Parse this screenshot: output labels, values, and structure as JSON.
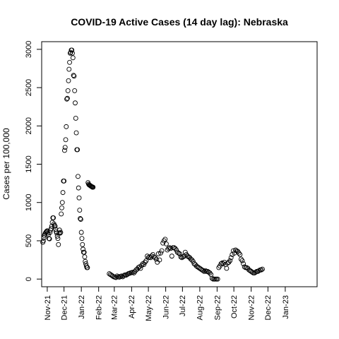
{
  "chart_data": {
    "type": "scatter",
    "title": "COVID-19 Active Cases (14 day lag): Nebraska",
    "xlabel": "",
    "ylabel": "Cases per 100,000",
    "ylim": [
      -100,
      3100
    ],
    "xlim": [
      "2021-10-22",
      "2023-02-27"
    ],
    "yticks": [
      0,
      500,
      1000,
      1500,
      2000,
      2500,
      3000
    ],
    "xticks": [
      {
        "date": "2021-11-01",
        "label": "Nov-21"
      },
      {
        "date": "2021-12-01",
        "label": "Dec-21"
      },
      {
        "date": "2022-01-01",
        "label": "Jan-22"
      },
      {
        "date": "2022-02-01",
        "label": "Feb-22"
      },
      {
        "date": "2022-03-01",
        "label": "Mar-22"
      },
      {
        "date": "2022-04-01",
        "label": "Apr-22"
      },
      {
        "date": "2022-05-01",
        "label": "May-22"
      },
      {
        "date": "2022-06-01",
        "label": "Jun-22"
      },
      {
        "date": "2022-07-01",
        "label": "Jul-22"
      },
      {
        "date": "2022-08-01",
        "label": "Aug-22"
      },
      {
        "date": "2022-09-01",
        "label": "Sep-22"
      },
      {
        "date": "2022-10-01",
        "label": "Oct-22"
      },
      {
        "date": "2022-11-01",
        "label": "Nov-22"
      },
      {
        "date": "2022-12-01",
        "label": "Dec-22"
      },
      {
        "date": "2023-01-01",
        "label": "Jan-23"
      }
    ],
    "marker": "open-circle",
    "grid": false,
    "series": [
      {
        "points": [
          [
            "2021-10-24",
            480
          ],
          [
            "2021-10-25",
            500
          ],
          [
            "2021-10-26",
            540
          ],
          [
            "2021-10-27",
            570
          ],
          [
            "2021-10-28",
            590
          ],
          [
            "2021-10-29",
            605
          ],
          [
            "2021-10-30",
            615
          ],
          [
            "2021-10-31",
            625
          ],
          [
            "2021-11-01",
            630
          ],
          [
            "2021-11-02",
            600
          ],
          [
            "2021-11-03",
            580
          ],
          [
            "2021-11-04",
            530
          ],
          [
            "2021-11-05",
            525
          ],
          [
            "2021-11-06",
            610
          ],
          [
            "2021-11-07",
            640
          ],
          [
            "2021-11-08",
            660
          ],
          [
            "2021-11-09",
            690
          ],
          [
            "2021-11-10",
            740
          ],
          [
            "2021-11-11",
            800
          ],
          [
            "2021-11-12",
            800
          ],
          [
            "2021-11-13",
            720
          ],
          [
            "2021-11-14",
            700
          ],
          [
            "2021-11-15",
            690
          ],
          [
            "2021-11-16",
            650
          ],
          [
            "2021-11-17",
            620
          ],
          [
            "2021-11-18",
            600
          ],
          [
            "2021-11-19",
            560
          ],
          [
            "2021-11-20",
            530
          ],
          [
            "2021-11-21",
            450
          ],
          [
            "2021-11-22",
            600
          ],
          [
            "2021-11-23",
            640
          ],
          [
            "2021-11-24",
            600
          ],
          [
            "2021-11-25",
            610
          ],
          [
            "2021-11-26",
            850
          ],
          [
            "2021-11-27",
            930
          ],
          [
            "2021-11-28",
            1000
          ],
          [
            "2021-11-29",
            1130
          ],
          [
            "2021-11-30",
            1280
          ],
          [
            "2021-12-01",
            1280
          ],
          [
            "2021-12-02",
            1680
          ],
          [
            "2021-12-03",
            1720
          ],
          [
            "2021-12-04",
            1820
          ],
          [
            "2021-12-05",
            1990
          ],
          [
            "2021-12-06",
            2350
          ],
          [
            "2021-12-07",
            2360
          ],
          [
            "2021-12-08",
            2460
          ],
          [
            "2021-12-09",
            2590
          ],
          [
            "2021-12-10",
            2740
          ],
          [
            "2021-12-11",
            2830
          ],
          [
            "2021-12-12",
            2950
          ],
          [
            "2021-12-13",
            2960
          ],
          [
            "2021-12-14",
            2990
          ],
          [
            "2021-12-15",
            2990
          ],
          [
            "2021-12-16",
            2950
          ],
          [
            "2021-12-17",
            2890
          ],
          [
            "2021-12-18",
            2660
          ],
          [
            "2021-12-19",
            2650
          ],
          [
            "2021-12-20",
            2460
          ],
          [
            "2021-12-21",
            2300
          ],
          [
            "2021-12-22",
            2100
          ],
          [
            "2021-12-23",
            1910
          ],
          [
            "2021-12-24",
            1690
          ],
          [
            "2021-12-25",
            1690
          ],
          [
            "2021-12-26",
            1340
          ],
          [
            "2021-12-27",
            1190
          ],
          [
            "2021-12-28",
            1060
          ],
          [
            "2021-12-29",
            900
          ],
          [
            "2021-12-30",
            790
          ],
          [
            "2021-12-31",
            780
          ],
          [
            "2022-01-01",
            610
          ],
          [
            "2022-01-02",
            530
          ],
          [
            "2022-01-03",
            450
          ],
          [
            "2022-01-04",
            390
          ],
          [
            "2022-01-05",
            350
          ],
          [
            "2022-01-06",
            350
          ],
          [
            "2022-01-07",
            290
          ],
          [
            "2022-01-08",
            230
          ],
          [
            "2022-01-09",
            200
          ],
          [
            "2022-01-10",
            170
          ],
          [
            "2022-01-11",
            150
          ],
          [
            "2022-01-12",
            150
          ],
          [
            "2022-01-13",
            1260
          ],
          [
            "2022-01-14",
            1240
          ],
          [
            "2022-01-15",
            1230
          ],
          [
            "2022-01-16",
            1225
          ],
          [
            "2022-01-17",
            1220
          ],
          [
            "2022-01-18",
            1215
          ],
          [
            "2022-01-19",
            1210
          ],
          [
            "2022-01-20",
            1205
          ],
          [
            "2022-01-21",
            1200
          ],
          [
            "2022-01-22",
            1200
          ],
          [
            "2022-02-20",
            70
          ],
          [
            "2022-02-22",
            60
          ],
          [
            "2022-02-24",
            50
          ],
          [
            "2022-02-26",
            40
          ],
          [
            "2022-02-28",
            30
          ],
          [
            "2022-03-02",
            25
          ],
          [
            "2022-03-04",
            20
          ],
          [
            "2022-03-06",
            40
          ],
          [
            "2022-03-08",
            30
          ],
          [
            "2022-03-10",
            25
          ],
          [
            "2022-03-12",
            35
          ],
          [
            "2022-03-14",
            40
          ],
          [
            "2022-03-16",
            30
          ],
          [
            "2022-03-18",
            45
          ],
          [
            "2022-03-20",
            55
          ],
          [
            "2022-03-22",
            50
          ],
          [
            "2022-03-24",
            60
          ],
          [
            "2022-03-26",
            70
          ],
          [
            "2022-03-28",
            75
          ],
          [
            "2022-03-30",
            80
          ],
          [
            "2022-04-01",
            85
          ],
          [
            "2022-04-03",
            90
          ],
          [
            "2022-04-05",
            80
          ],
          [
            "2022-04-07",
            100
          ],
          [
            "2022-04-09",
            120
          ],
          [
            "2022-04-11",
            130
          ],
          [
            "2022-04-13",
            150
          ],
          [
            "2022-04-15",
            160
          ],
          [
            "2022-04-17",
            140
          ],
          [
            "2022-04-19",
            180
          ],
          [
            "2022-04-21",
            200
          ],
          [
            "2022-04-23",
            190
          ],
          [
            "2022-04-25",
            220
          ],
          [
            "2022-04-27",
            240
          ],
          [
            "2022-04-29",
            300
          ],
          [
            "2022-05-01",
            280
          ],
          [
            "2022-05-03",
            290
          ],
          [
            "2022-05-05",
            280
          ],
          [
            "2022-05-07",
            300
          ],
          [
            "2022-05-09",
            320
          ],
          [
            "2022-05-11",
            290
          ],
          [
            "2022-05-13",
            280
          ],
          [
            "2022-05-15",
            260
          ],
          [
            "2022-05-17",
            220
          ],
          [
            "2022-05-19",
            330
          ],
          [
            "2022-05-21",
            250
          ],
          [
            "2022-05-23",
            340
          ],
          [
            "2022-05-25",
            370
          ],
          [
            "2022-05-27",
            470
          ],
          [
            "2022-05-29",
            500
          ],
          [
            "2022-05-31",
            520
          ],
          [
            "2022-06-02",
            460
          ],
          [
            "2022-06-04",
            380
          ],
          [
            "2022-06-06",
            400
          ],
          [
            "2022-06-08",
            410
          ],
          [
            "2022-06-10",
            400
          ],
          [
            "2022-06-12",
            300
          ],
          [
            "2022-06-14",
            410
          ],
          [
            "2022-06-16",
            410
          ],
          [
            "2022-06-18",
            400
          ],
          [
            "2022-06-20",
            380
          ],
          [
            "2022-06-22",
            350
          ],
          [
            "2022-06-24",
            340
          ],
          [
            "2022-06-26",
            330
          ],
          [
            "2022-06-28",
            290
          ],
          [
            "2022-06-30",
            280
          ],
          [
            "2022-07-02",
            290
          ],
          [
            "2022-07-04",
            300
          ],
          [
            "2022-07-06",
            350
          ],
          [
            "2022-07-08",
            320
          ],
          [
            "2022-07-10",
            300
          ],
          [
            "2022-07-12",
            290
          ],
          [
            "2022-07-14",
            280
          ],
          [
            "2022-07-16",
            260
          ],
          [
            "2022-07-18",
            250
          ],
          [
            "2022-07-20",
            230
          ],
          [
            "2022-07-22",
            200
          ],
          [
            "2022-07-24",
            190
          ],
          [
            "2022-07-26",
            170
          ],
          [
            "2022-07-28",
            160
          ],
          [
            "2022-07-30",
            150
          ],
          [
            "2022-08-01",
            140
          ],
          [
            "2022-08-03",
            130
          ],
          [
            "2022-08-05",
            120
          ],
          [
            "2022-08-07",
            110
          ],
          [
            "2022-08-09",
            100
          ],
          [
            "2022-08-11",
            110
          ],
          [
            "2022-08-13",
            100
          ],
          [
            "2022-08-15",
            100
          ],
          [
            "2022-08-17",
            90
          ],
          [
            "2022-08-19",
            80
          ],
          [
            "2022-08-21",
            60
          ],
          [
            "2022-08-23",
            10
          ],
          [
            "2022-08-25",
            0
          ],
          [
            "2022-08-27",
            0
          ],
          [
            "2022-08-29",
            0
          ],
          [
            "2022-08-31",
            0
          ],
          [
            "2022-09-02",
            0
          ],
          [
            "2022-09-04",
            150
          ],
          [
            "2022-09-06",
            170
          ],
          [
            "2022-09-08",
            200
          ],
          [
            "2022-09-10",
            210
          ],
          [
            "2022-09-12",
            200
          ],
          [
            "2022-09-14",
            220
          ],
          [
            "2022-09-16",
            190
          ],
          [
            "2022-09-18",
            140
          ],
          [
            "2022-09-20",
            210
          ],
          [
            "2022-09-22",
            220
          ],
          [
            "2022-09-24",
            240
          ],
          [
            "2022-09-26",
            280
          ],
          [
            "2022-09-28",
            320
          ],
          [
            "2022-09-30",
            370
          ],
          [
            "2022-10-02",
            340
          ],
          [
            "2022-10-04",
            380
          ],
          [
            "2022-10-06",
            370
          ],
          [
            "2022-10-08",
            360
          ],
          [
            "2022-10-10",
            340
          ],
          [
            "2022-10-12",
            320
          ],
          [
            "2022-10-14",
            260
          ],
          [
            "2022-10-16",
            240
          ],
          [
            "2022-10-18",
            200
          ],
          [
            "2022-10-20",
            160
          ],
          [
            "2022-10-22",
            150
          ],
          [
            "2022-10-24",
            150
          ],
          [
            "2022-10-26",
            140
          ],
          [
            "2022-10-28",
            120
          ],
          [
            "2022-10-30",
            110
          ],
          [
            "2022-11-01",
            100
          ],
          [
            "2022-11-03",
            90
          ],
          [
            "2022-11-05",
            80
          ],
          [
            "2022-11-07",
            80
          ],
          [
            "2022-11-09",
            90
          ],
          [
            "2022-11-11",
            100
          ],
          [
            "2022-11-13",
            100
          ],
          [
            "2022-11-15",
            110
          ],
          [
            "2022-11-17",
            120
          ],
          [
            "2022-11-19",
            120
          ],
          [
            "2022-11-21",
            130
          ]
        ]
      }
    ]
  }
}
